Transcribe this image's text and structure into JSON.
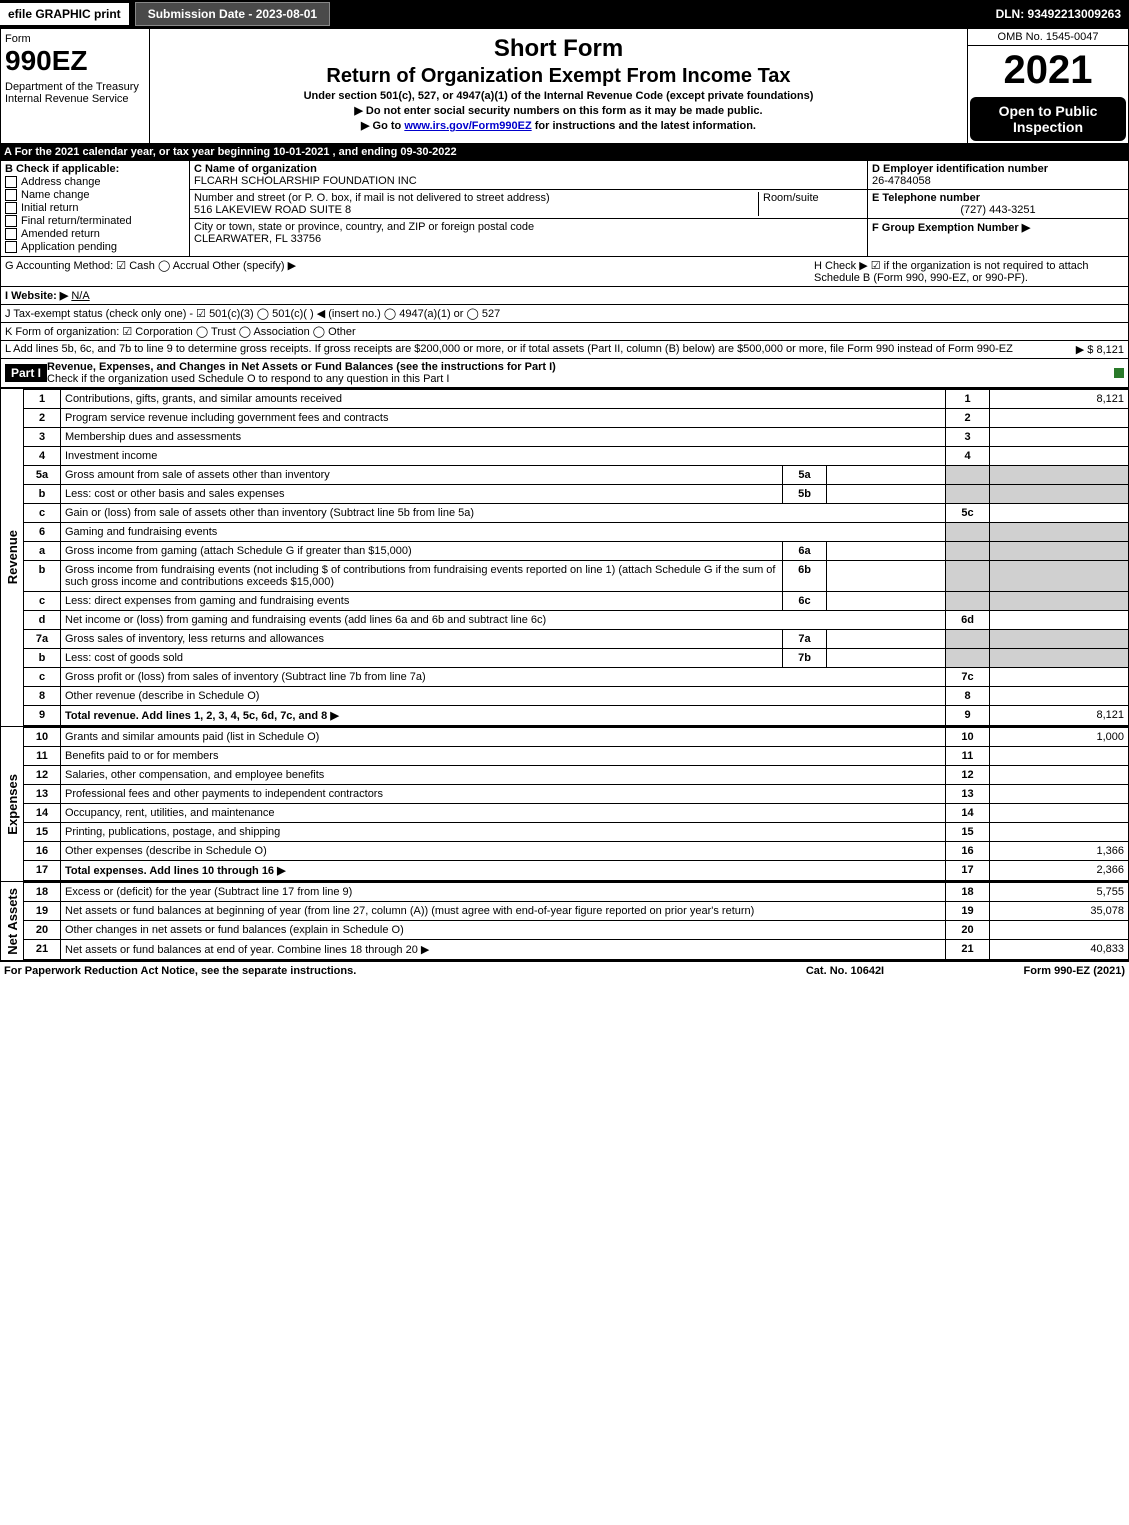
{
  "top": {
    "efile": "efile GRAPHIC print",
    "submission": "Submission Date - 2023-08-01",
    "dln": "DLN: 93492213009263"
  },
  "header": {
    "form_word": "Form",
    "form_num": "990EZ",
    "dept": "Department of the Treasury\nInternal Revenue Service",
    "short_form": "Short Form",
    "title": "Return of Organization Exempt From Income Tax",
    "under": "Under section 501(c), 527, or 4947(a)(1) of the Internal Revenue Code (except private foundations)",
    "warn1": "▶ Do not enter social security numbers on this form as it may be made public.",
    "warn2_pre": "▶ Go to ",
    "warn2_link": "www.irs.gov/Form990EZ",
    "warn2_post": " for instructions and the latest information.",
    "omb": "OMB No. 1545-0047",
    "year": "2021",
    "open": "Open to Public Inspection"
  },
  "sectionA": "A  For the 2021 calendar year, or tax year beginning 10-01-2021 , and ending 09-30-2022",
  "B": {
    "label": "B  Check if applicable:",
    "opts": [
      "Address change",
      "Name change",
      "Initial return",
      "Final return/terminated",
      "Amended return",
      "Application pending"
    ]
  },
  "C": {
    "name_label": "C Name of organization",
    "name": "FLCARH SCHOLARSHIP FOUNDATION INC",
    "street_label": "Number and street (or P. O. box, if mail is not delivered to street address)",
    "street": "516 LAKEVIEW ROAD SUITE 8",
    "room_label": "Room/suite",
    "city_label": "City or town, state or province, country, and ZIP or foreign postal code",
    "city": "CLEARWATER, FL  33756"
  },
  "D": {
    "label": "D Employer identification number",
    "val": "26-4784058"
  },
  "E": {
    "label": "E Telephone number",
    "val": "(727) 443-3251"
  },
  "F": {
    "label": "F Group Exemption Number  ▶"
  },
  "G": "G Accounting Method:  ☑ Cash  ◯ Accrual   Other (specify) ▶",
  "H": "H   Check ▶ ☑ if the organization is not required to attach Schedule B (Form 990, 990-EZ, or 990-PF).",
  "I": {
    "label": "I Website: ▶",
    "val": "N/A"
  },
  "J": "J Tax-exempt status (check only one) - ☑ 501(c)(3) ◯ 501(c)(  ) ◀ (insert no.) ◯ 4947(a)(1) or ◯ 527",
  "K": "K Form of organization:  ☑ Corporation  ◯ Trust  ◯ Association  ◯ Other",
  "L": {
    "text": "L Add lines 5b, 6c, and 7b to line 9 to determine gross receipts. If gross receipts are $200,000 or more, or if total assets (Part II, column (B) below) are $500,000 or more, file Form 990 instead of Form 990-EZ",
    "amount": "▶ $ 8,121"
  },
  "partI": {
    "title": "Revenue, Expenses, and Changes in Net Assets or Fund Balances (see the instructions for Part I)",
    "sub": "Check if the organization used Schedule O to respond to any question in this Part I"
  },
  "revenue_rows": [
    {
      "n": "1",
      "d": "Contributions, gifts, grants, and similar amounts received",
      "rn": "1",
      "rv": "8,121"
    },
    {
      "n": "2",
      "d": "Program service revenue including government fees and contracts",
      "rn": "2",
      "rv": ""
    },
    {
      "n": "3",
      "d": "Membership dues and assessments",
      "rn": "3",
      "rv": ""
    },
    {
      "n": "4",
      "d": "Investment income",
      "rn": "4",
      "rv": ""
    },
    {
      "n": "5a",
      "d": "Gross amount from sale of assets other than inventory",
      "in": "5a",
      "iv": "",
      "grey": true
    },
    {
      "n": "b",
      "d": "Less: cost or other basis and sales expenses",
      "in": "5b",
      "iv": "",
      "grey": true
    },
    {
      "n": "c",
      "d": "Gain or (loss) from sale of assets other than inventory (Subtract line 5b from line 5a)",
      "rn": "5c",
      "rv": ""
    },
    {
      "n": "6",
      "d": "Gaming and fundraising events",
      "grey": true,
      "noright": true
    },
    {
      "n": "a",
      "d": "Gross income from gaming (attach Schedule G if greater than $15,000)",
      "in": "6a",
      "iv": "",
      "grey": true
    },
    {
      "n": "b",
      "d": "Gross income from fundraising events (not including $              of contributions from fundraising events reported on line 1) (attach Schedule G if the sum of such gross income and contributions exceeds $15,000)",
      "in": "6b",
      "iv": "",
      "grey": true
    },
    {
      "n": "c",
      "d": "Less: direct expenses from gaming and fundraising events",
      "in": "6c",
      "iv": "",
      "grey": true
    },
    {
      "n": "d",
      "d": "Net income or (loss) from gaming and fundraising events (add lines 6a and 6b and subtract line 6c)",
      "rn": "6d",
      "rv": ""
    },
    {
      "n": "7a",
      "d": "Gross sales of inventory, less returns and allowances",
      "in": "7a",
      "iv": "",
      "grey": true
    },
    {
      "n": "b",
      "d": "Less: cost of goods sold",
      "in": "7b",
      "iv": "",
      "grey": true
    },
    {
      "n": "c",
      "d": "Gross profit or (loss) from sales of inventory (Subtract line 7b from line 7a)",
      "rn": "7c",
      "rv": ""
    },
    {
      "n": "8",
      "d": "Other revenue (describe in Schedule O)",
      "rn": "8",
      "rv": ""
    },
    {
      "n": "9",
      "d": "Total revenue. Add lines 1, 2, 3, 4, 5c, 6d, 7c, and 8    ▶",
      "rn": "9",
      "rv": "8,121",
      "bold": true
    }
  ],
  "expense_rows": [
    {
      "n": "10",
      "d": "Grants and similar amounts paid (list in Schedule O)",
      "rn": "10",
      "rv": "1,000"
    },
    {
      "n": "11",
      "d": "Benefits paid to or for members",
      "rn": "11",
      "rv": ""
    },
    {
      "n": "12",
      "d": "Salaries, other compensation, and employee benefits",
      "rn": "12",
      "rv": ""
    },
    {
      "n": "13",
      "d": "Professional fees and other payments to independent contractors",
      "rn": "13",
      "rv": ""
    },
    {
      "n": "14",
      "d": "Occupancy, rent, utilities, and maintenance",
      "rn": "14",
      "rv": ""
    },
    {
      "n": "15",
      "d": "Printing, publications, postage, and shipping",
      "rn": "15",
      "rv": ""
    },
    {
      "n": "16",
      "d": "Other expenses (describe in Schedule O)",
      "rn": "16",
      "rv": "1,366"
    },
    {
      "n": "17",
      "d": "Total expenses. Add lines 10 through 16    ▶",
      "rn": "17",
      "rv": "2,366",
      "bold": true
    }
  ],
  "netassets_rows": [
    {
      "n": "18",
      "d": "Excess or (deficit) for the year (Subtract line 17 from line 9)",
      "rn": "18",
      "rv": "5,755"
    },
    {
      "n": "19",
      "d": "Net assets or fund balances at beginning of year (from line 27, column (A)) (must agree with end-of-year figure reported on prior year's return)",
      "rn": "19",
      "rv": "35,078"
    },
    {
      "n": "20",
      "d": "Other changes in net assets or fund balances (explain in Schedule O)",
      "rn": "20",
      "rv": ""
    },
    {
      "n": "21",
      "d": "Net assets or fund balances at end of year. Combine lines 18 through 20    ▶",
      "rn": "21",
      "rv": "40,833"
    }
  ],
  "side_labels": {
    "rev": "Revenue",
    "exp": "Expenses",
    "na": "Net Assets"
  },
  "footer": {
    "left": "For Paperwork Reduction Act Notice, see the separate instructions.",
    "mid": "Cat. No. 10642I",
    "right": "Form 990-EZ (2021)"
  }
}
